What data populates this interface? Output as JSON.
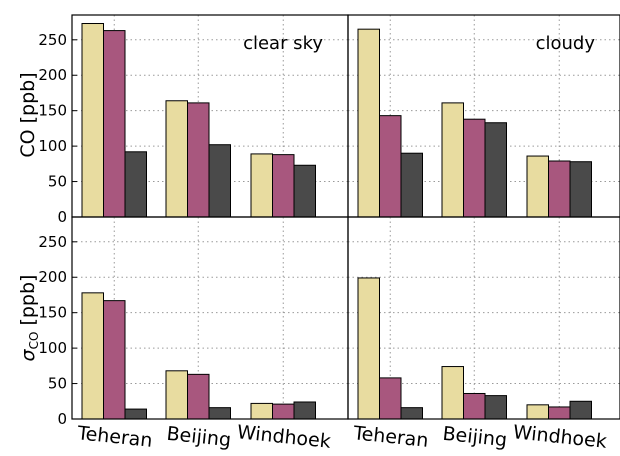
{
  "categories": [
    "Teheran",
    "Beijing",
    "Windhoek"
  ],
  "colors": [
    "#e8dca0",
    "#a8577e",
    "#4a4a4a"
  ],
  "y_axis": {
    "ticks": [
      0,
      50,
      100,
      150,
      200,
      250
    ],
    "ylim": [
      0,
      285
    ],
    "top_label": "CO [ppb]",
    "bottom_label_symbol": "σ",
    "bottom_label_subscript": "CO",
    "bottom_label_unit": " [ppb]"
  },
  "chart_data": [
    {
      "type": "bar",
      "panel": "top-left",
      "annotation": "clear sky",
      "categories": [
        "Teheran",
        "Beijing",
        "Windhoek"
      ],
      "series": [
        {
          "values": [
            273,
            164,
            89
          ]
        },
        {
          "values": [
            263,
            161,
            88
          ]
        },
        {
          "values": [
            92,
            102,
            73
          ]
        }
      ],
      "ylabel": "CO [ppb]",
      "ylim": [
        0,
        285
      ],
      "grid": true
    },
    {
      "type": "bar",
      "panel": "top-right",
      "annotation": "cloudy",
      "categories": [
        "Teheran",
        "Beijing",
        "Windhoek"
      ],
      "series": [
        {
          "values": [
            265,
            161,
            86
          ]
        },
        {
          "values": [
            143,
            138,
            79
          ]
        },
        {
          "values": [
            90,
            133,
            78
          ]
        }
      ],
      "ylim": [
        0,
        285
      ],
      "grid": true
    },
    {
      "type": "bar",
      "panel": "bottom-left",
      "annotation": "",
      "categories": [
        "Teheran",
        "Beijing",
        "Windhoek"
      ],
      "series": [
        {
          "values": [
            178,
            68,
            22
          ]
        },
        {
          "values": [
            167,
            63,
            21
          ]
        },
        {
          "values": [
            14,
            16,
            24
          ]
        }
      ],
      "ylabel": "σCO [ppb]",
      "ylim": [
        0,
        285
      ],
      "grid": true
    },
    {
      "type": "bar",
      "panel": "bottom-right",
      "annotation": "",
      "categories": [
        "Teheran",
        "Beijing",
        "Windhoek"
      ],
      "series": [
        {
          "values": [
            199,
            74,
            20
          ]
        },
        {
          "values": [
            58,
            36,
            17
          ]
        },
        {
          "values": [
            16,
            33,
            25
          ]
        }
      ],
      "ylim": [
        0,
        285
      ],
      "grid": true
    }
  ]
}
